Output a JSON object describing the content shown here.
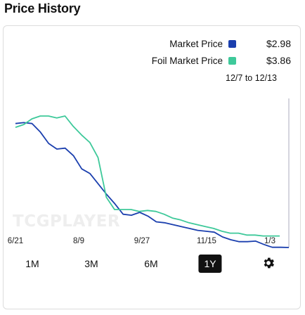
{
  "page": {
    "title": "Price History"
  },
  "legend": {
    "market": {
      "label": "Market Price",
      "value": "$2.98",
      "color": "#1b3fae"
    },
    "foil": {
      "label": "Foil Market Price",
      "value": "$3.86",
      "color": "#3ec99a"
    }
  },
  "date_range": "12/7 to 12/13",
  "watermark": "TCGPLAYER",
  "range_buttons": [
    {
      "label": "1M",
      "active": false
    },
    {
      "label": "3M",
      "active": false
    },
    {
      "label": "6M",
      "active": false
    },
    {
      "label": "1Y",
      "active": true
    }
  ],
  "settings_icon": "gear-icon",
  "chart_data": {
    "type": "line",
    "x_ticks": [
      "6/21",
      "8/9",
      "9/27",
      "11/15",
      "1/3"
    ],
    "grid": false,
    "series": [
      {
        "name": "Market Price",
        "color": "#1b3fae",
        "values": [
          6.2,
          6.25,
          6.2,
          5.75,
          5.15,
          4.85,
          4.9,
          4.5,
          3.8,
          3.55,
          3.0,
          2.45,
          1.95,
          1.4,
          1.35,
          1.5,
          1.3,
          1.0,
          0.95,
          0.85,
          0.75,
          0.65,
          0.55,
          0.5,
          0.45,
          0.2,
          0.05,
          -0.05,
          -0.05,
          -0.02,
          -0.2,
          -0.35,
          -0.35,
          -0.36
        ]
      },
      {
        "name": "Foil Market Price",
        "color": "#3ec99a",
        "values": [
          6.0,
          6.15,
          6.45,
          6.6,
          6.6,
          6.5,
          6.6,
          6.05,
          5.6,
          5.2,
          4.4,
          2.3,
          1.65,
          1.65,
          1.65,
          1.55,
          1.6,
          1.55,
          1.4,
          1.2,
          1.1,
          0.95,
          0.85,
          0.75,
          0.65,
          0.5,
          0.4,
          0.4,
          0.3,
          0.3,
          0.25,
          0.25,
          0.25
        ]
      }
    ]
  }
}
